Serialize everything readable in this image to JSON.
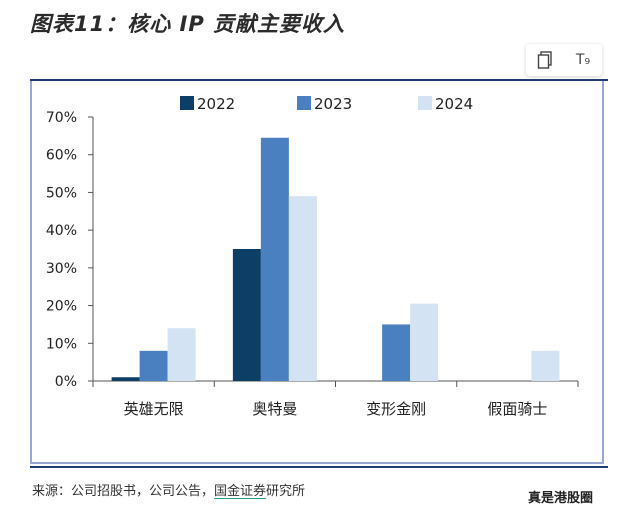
{
  "title": "图表11：核心 IP 贡献主要收入",
  "toolbar": {
    "copy_icon": "copy-icon",
    "text_icon": "text-recognition-icon",
    "text_icon_glyph": "T₉"
  },
  "source": {
    "prefix": "来源：公司招股书，公司公告，",
    "highlight": "国金证券",
    "suffix": "研究所"
  },
  "watermark": "真是港股圈",
  "colors": {
    "2022": "#0d3f66",
    "2023": "#4a7fc0",
    "2024": "#d3e3f3"
  },
  "chart_data": {
    "type": "bar",
    "categories": [
      "英雄无限",
      "奥特曼",
      "变形金刚",
      "假面骑士"
    ],
    "series": [
      {
        "name": "2022",
        "values": [
          1,
          35,
          0,
          0
        ]
      },
      {
        "name": "2023",
        "values": [
          8,
          64.5,
          15,
          0
        ]
      },
      {
        "name": "2024",
        "values": [
          14,
          49,
          20.5,
          8
        ]
      }
    ],
    "yticks": [
      "0%",
      "10%",
      "20%",
      "30%",
      "40%",
      "50%",
      "60%",
      "70%"
    ],
    "ylim": [
      0,
      70
    ],
    "unit": "%",
    "grid": false,
    "legend": "top"
  }
}
